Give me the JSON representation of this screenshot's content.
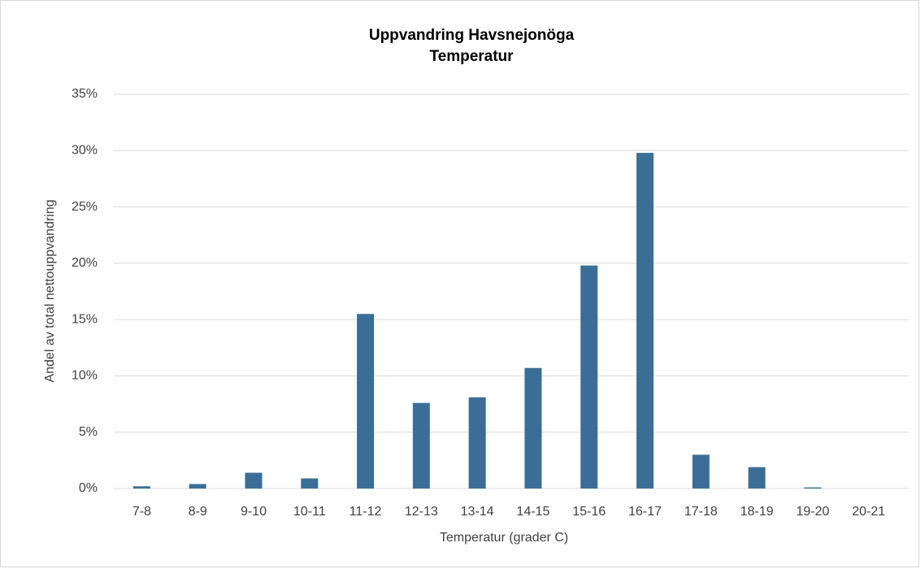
{
  "chart_data": {
    "type": "bar",
    "title": "Uppvandring Havsnejonöga",
    "subtitle": "Temperatur",
    "xlabel": "Temperatur  (grader C)",
    "ylabel": "Andel av total  nettouppvandring",
    "categories": [
      "7-8",
      "8-9",
      "9-10",
      "10-11",
      "11-12",
      "12-13",
      "13-14",
      "14-15",
      "15-16",
      "16-17",
      "17-18",
      "18-19",
      "19-20",
      "20-21"
    ],
    "values": [
      0.2,
      0.4,
      1.4,
      0.9,
      15.5,
      7.6,
      8.1,
      10.7,
      19.8,
      29.8,
      3.0,
      1.9,
      0.1,
      0
    ],
    "color": "#3b6e96",
    "ylim": [
      0,
      35
    ],
    "yticks": [
      {
        "value": 0,
        "label": "0%"
      },
      {
        "value": 5,
        "label": "5%"
      },
      {
        "value": 10,
        "label": "10%"
      },
      {
        "value": 15,
        "label": "15%"
      },
      {
        "value": 20,
        "label": "20%"
      },
      {
        "value": 25,
        "label": "25%"
      },
      {
        "value": 30,
        "label": "30%"
      },
      {
        "value": 35,
        "label": "35%"
      }
    ],
    "grid": true
  }
}
